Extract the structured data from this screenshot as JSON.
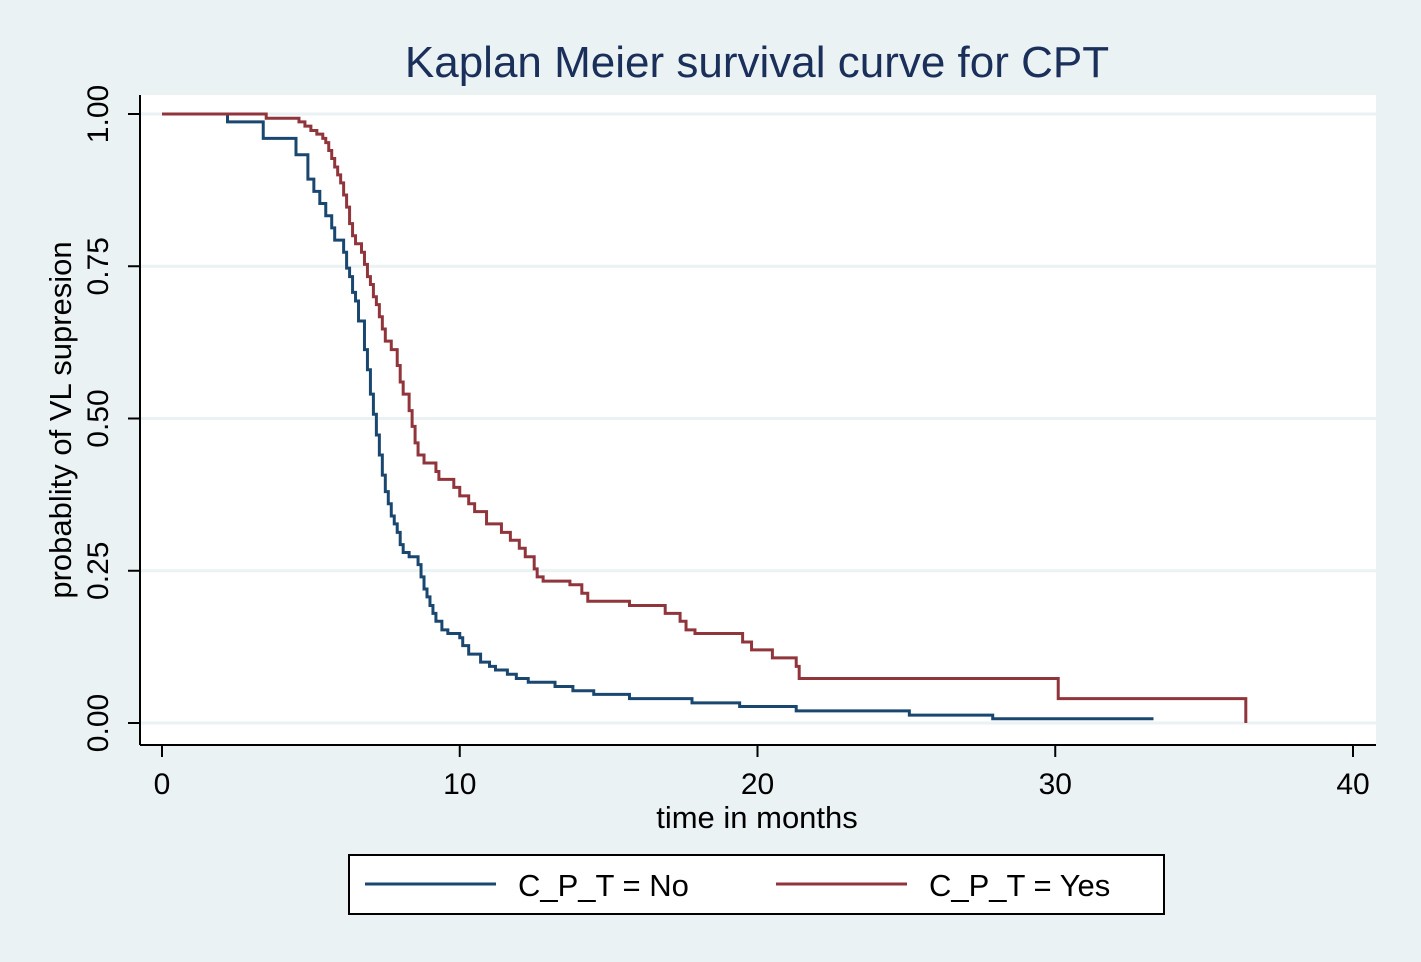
{
  "chart_data": {
    "type": "line",
    "subtype": "kaplan-meier-step",
    "title": "Kaplan Meier survival curve for CPT",
    "xlabel": "time in months",
    "ylabel": "probablity of VL supresion",
    "xlim": [
      0,
      40
    ],
    "ylim": [
      0,
      1
    ],
    "x_ticks": [
      "0",
      "10",
      "20",
      "30",
      "40"
    ],
    "x_tick_values": [
      0,
      10,
      20,
      30,
      40
    ],
    "y_ticks": [
      "0.00",
      "0.25",
      "0.50",
      "0.75",
      "1.00"
    ],
    "y_tick_values": [
      0,
      0.25,
      0.5,
      0.75,
      1.0
    ],
    "grid": true,
    "legend_position": "bottom",
    "series": [
      {
        "name": "C_P_T = No",
        "color": "#1a476f",
        "points": [
          [
            0,
            1.0
          ],
          [
            2.2,
            0.987
          ],
          [
            3.4,
            0.96
          ],
          [
            4.5,
            0.933
          ],
          [
            4.9,
            0.893
          ],
          [
            5.1,
            0.873
          ],
          [
            5.3,
            0.853
          ],
          [
            5.5,
            0.833
          ],
          [
            5.7,
            0.813
          ],
          [
            5.8,
            0.793
          ],
          [
            6.1,
            0.773
          ],
          [
            6.2,
            0.747
          ],
          [
            6.3,
            0.733
          ],
          [
            6.4,
            0.707
          ],
          [
            6.5,
            0.693
          ],
          [
            6.6,
            0.66
          ],
          [
            6.8,
            0.613
          ],
          [
            6.9,
            0.58
          ],
          [
            7.0,
            0.54
          ],
          [
            7.1,
            0.507
          ],
          [
            7.2,
            0.473
          ],
          [
            7.3,
            0.44
          ],
          [
            7.4,
            0.407
          ],
          [
            7.5,
            0.38
          ],
          [
            7.6,
            0.36
          ],
          [
            7.7,
            0.34
          ],
          [
            7.8,
            0.327
          ],
          [
            7.9,
            0.313
          ],
          [
            8.0,
            0.293
          ],
          [
            8.1,
            0.28
          ],
          [
            8.3,
            0.273
          ],
          [
            8.6,
            0.26
          ],
          [
            8.7,
            0.24
          ],
          [
            8.8,
            0.22
          ],
          [
            8.9,
            0.207
          ],
          [
            9.0,
            0.193
          ],
          [
            9.1,
            0.18
          ],
          [
            9.2,
            0.167
          ],
          [
            9.4,
            0.153
          ],
          [
            9.6,
            0.147
          ],
          [
            10.0,
            0.14
          ],
          [
            10.1,
            0.127
          ],
          [
            10.3,
            0.113
          ],
          [
            10.7,
            0.1
          ],
          [
            11.0,
            0.093
          ],
          [
            11.2,
            0.087
          ],
          [
            11.6,
            0.08
          ],
          [
            11.9,
            0.073
          ],
          [
            12.3,
            0.067
          ],
          [
            13.2,
            0.06
          ],
          [
            13.8,
            0.053
          ],
          [
            14.5,
            0.047
          ],
          [
            15.7,
            0.04
          ],
          [
            16.3,
            0.04
          ],
          [
            16.6,
            0.04
          ],
          [
            17.8,
            0.033
          ],
          [
            19.4,
            0.027
          ],
          [
            21.3,
            0.02
          ],
          [
            25.1,
            0.013
          ],
          [
            27.9,
            0.007
          ],
          [
            33.3,
            0.007
          ]
        ]
      },
      {
        "name": "C_P_T = Yes",
        "color": "#90353b",
        "points": [
          [
            0,
            1.0
          ],
          [
            3.5,
            0.993
          ],
          [
            4.6,
            0.987
          ],
          [
            4.8,
            0.98
          ],
          [
            5.0,
            0.973
          ],
          [
            5.2,
            0.967
          ],
          [
            5.4,
            0.96
          ],
          [
            5.5,
            0.953
          ],
          [
            5.6,
            0.94
          ],
          [
            5.7,
            0.927
          ],
          [
            5.8,
            0.913
          ],
          [
            5.9,
            0.9
          ],
          [
            6.0,
            0.887
          ],
          [
            6.1,
            0.867
          ],
          [
            6.2,
            0.847
          ],
          [
            6.3,
            0.82
          ],
          [
            6.4,
            0.8
          ],
          [
            6.5,
            0.787
          ],
          [
            6.7,
            0.773
          ],
          [
            6.8,
            0.753
          ],
          [
            6.9,
            0.733
          ],
          [
            7.0,
            0.72
          ],
          [
            7.1,
            0.7
          ],
          [
            7.2,
            0.687
          ],
          [
            7.3,
            0.667
          ],
          [
            7.4,
            0.647
          ],
          [
            7.5,
            0.627
          ],
          [
            7.7,
            0.613
          ],
          [
            7.9,
            0.587
          ],
          [
            8.0,
            0.56
          ],
          [
            8.1,
            0.54
          ],
          [
            8.3,
            0.513
          ],
          [
            8.4,
            0.487
          ],
          [
            8.5,
            0.46
          ],
          [
            8.6,
            0.44
          ],
          [
            8.8,
            0.427
          ],
          [
            9.2,
            0.413
          ],
          [
            9.3,
            0.4
          ],
          [
            9.8,
            0.387
          ],
          [
            10.0,
            0.373
          ],
          [
            10.3,
            0.36
          ],
          [
            10.5,
            0.347
          ],
          [
            10.9,
            0.327
          ],
          [
            11.4,
            0.313
          ],
          [
            11.7,
            0.3
          ],
          [
            12.0,
            0.287
          ],
          [
            12.2,
            0.273
          ],
          [
            12.5,
            0.253
          ],
          [
            12.6,
            0.24
          ],
          [
            12.8,
            0.233
          ],
          [
            13.7,
            0.227
          ],
          [
            14.1,
            0.213
          ],
          [
            14.3,
            0.2
          ],
          [
            15.7,
            0.193
          ],
          [
            16.9,
            0.18
          ],
          [
            17.4,
            0.167
          ],
          [
            17.6,
            0.153
          ],
          [
            17.9,
            0.147
          ],
          [
            19.5,
            0.133
          ],
          [
            19.8,
            0.12
          ],
          [
            20.5,
            0.107
          ],
          [
            21.3,
            0.093
          ],
          [
            21.4,
            0.073
          ],
          [
            30.1,
            0.04
          ],
          [
            36.4,
            0.04
          ],
          [
            36.4,
            0.0
          ]
        ]
      }
    ]
  }
}
